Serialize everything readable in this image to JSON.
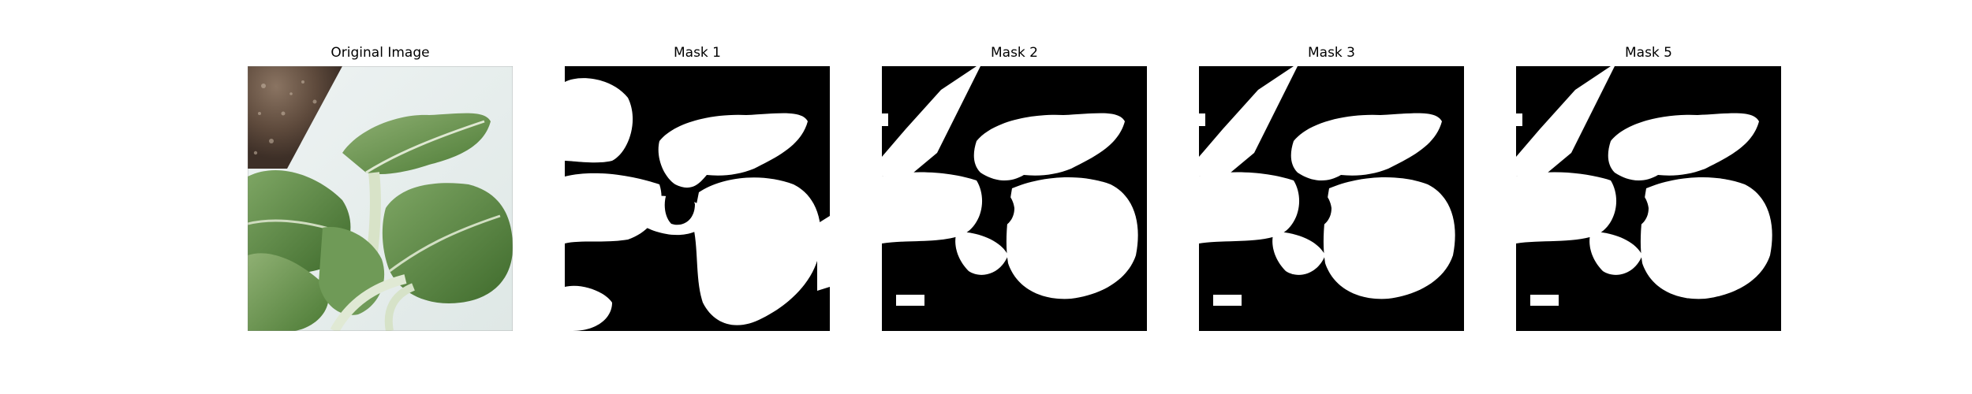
{
  "figure": {
    "panels": [
      {
        "title": "Original Image"
      },
      {
        "title": "Mask 1"
      },
      {
        "title": "Mask 2"
      },
      {
        "title": "Mask 3"
      },
      {
        "title": "Mask 5"
      }
    ]
  }
}
